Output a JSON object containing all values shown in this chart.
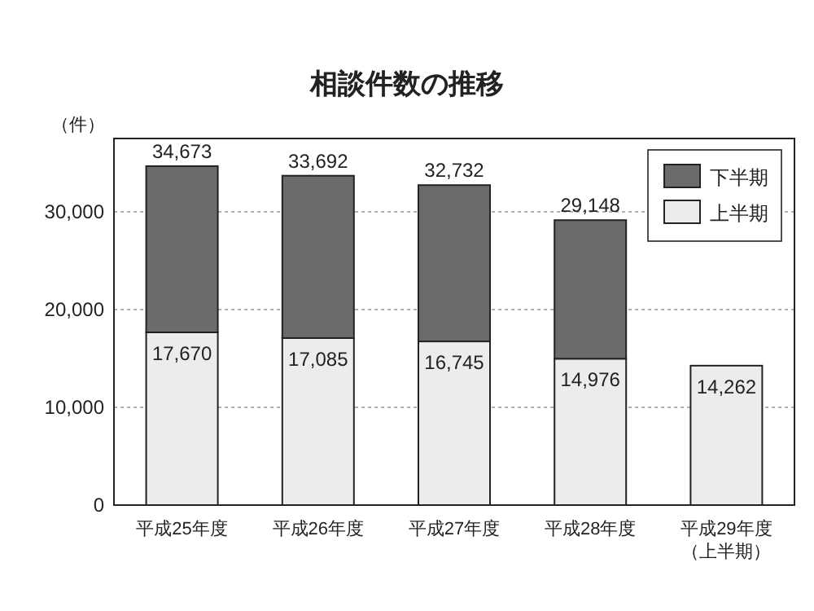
{
  "chart_data": {
    "type": "bar",
    "title": "相談件数の推移",
    "ylabel": "（件）",
    "categories": [
      "平成25年度",
      "平成26年度",
      "平成27年度",
      "平成28年度",
      "平成29年度（上半期）"
    ],
    "stacked": true,
    "series": [
      {
        "name": "上半期",
        "color": "#ececec",
        "values": [
          17670,
          17085,
          16745,
          14976,
          14262
        ],
        "value_labels": [
          "17,670",
          "17,085",
          "16,745",
          "14,976",
          "14,262"
        ]
      },
      {
        "name": "下半期",
        "color": "#6b6b6b",
        "values": [
          17003,
          16607,
          15987,
          14172,
          null
        ]
      }
    ],
    "totals": [
      "34,673",
      "33,692",
      "32,732",
      "29,148",
      null
    ],
    "ylim": [
      0,
      37500
    ],
    "yticks": [
      0,
      {
        "value": 10000,
        "label": "10,000"
      },
      {
        "value": 20000,
        "label": "20,000"
      },
      {
        "value": 30000,
        "label": "30,000"
      }
    ],
    "grid": "y",
    "legend": "top right"
  }
}
